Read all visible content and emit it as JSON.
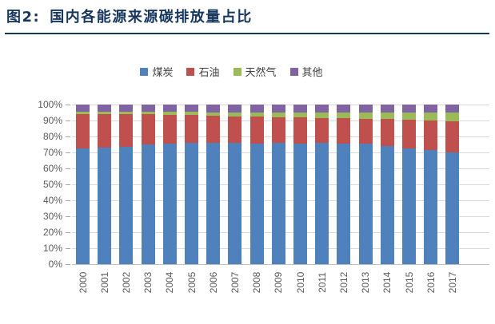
{
  "title": {
    "prefix": "图2:",
    "text": "国内各能源来源碳排放量占比"
  },
  "colors": {
    "title_navy": "#17365D",
    "axis_text_gray": "#595959",
    "gridline_gray": "#D9D9D9",
    "coal_blue": "#4F81BD",
    "oil_red": "#C0504D",
    "gas_green": "#9BBB59",
    "other_purple": "#8064A2"
  },
  "chart_data": {
    "type": "bar",
    "subtype": "stacked-100-percent",
    "title": "国内各能源来源碳排放量占比",
    "xlabel": "",
    "ylabel": "",
    "ylim": [
      0,
      100
    ],
    "grid": true,
    "legend_position": "top-center",
    "yticks": [
      "0%",
      "10%",
      "20%",
      "30%",
      "40%",
      "50%",
      "60%",
      "70%",
      "80%",
      "90%",
      "100%"
    ],
    "categories": [
      "2000",
      "2001",
      "2002",
      "2003",
      "2004",
      "2005",
      "2006",
      "2007",
      "2008",
      "2009",
      "2010",
      "2011",
      "2012",
      "2013",
      "2014",
      "2015",
      "2016",
      "2017"
    ],
    "series": [
      {
        "key": "coal",
        "name": "煤炭",
        "color": "#4F81BD",
        "values": [
          72.5,
          73,
          73.5,
          75,
          75.5,
          76,
          76,
          76,
          75.5,
          76,
          75.5,
          76,
          75.5,
          75.5,
          74,
          72.5,
          71.5,
          70
        ]
      },
      {
        "key": "oil",
        "name": "石油",
        "color": "#C0504D",
        "values": [
          21.5,
          21,
          20.5,
          19,
          18,
          17.5,
          17,
          16.5,
          17,
          16,
          16.5,
          15.5,
          16,
          15.5,
          17,
          18,
          18.5,
          19.5
        ]
      },
      {
        "key": "gas",
        "name": "天然气",
        "color": "#9BBB59",
        "values": [
          1.5,
          1.5,
          1.5,
          1.5,
          2,
          2,
          2,
          2.5,
          2.5,
          3,
          3,
          3.5,
          3.5,
          4,
          4,
          4.5,
          5,
          5.5
        ]
      },
      {
        "key": "other",
        "name": "其他",
        "color": "#8064A2",
        "values": [
          4.5,
          4.5,
          4.5,
          4.5,
          4.5,
          4.5,
          5,
          5,
          5,
          5,
          5,
          5,
          5,
          5,
          5,
          5,
          5,
          5
        ]
      }
    ]
  }
}
